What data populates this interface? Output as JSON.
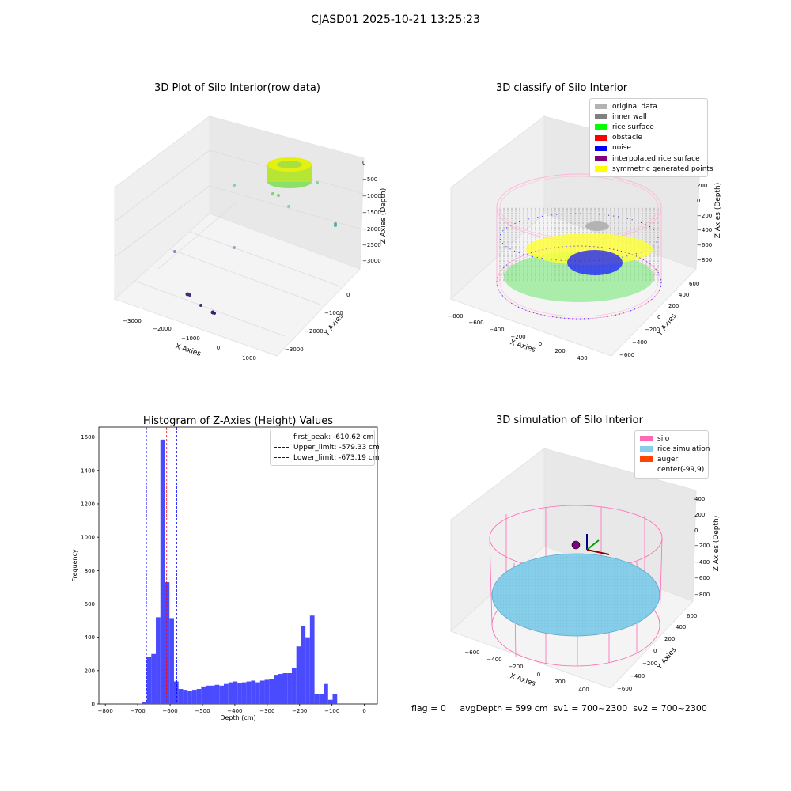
{
  "figure": {
    "suptitle": "CJASD01 2025-10-21 13:25:23",
    "footer": "flag = 0     avgDepth = 599 cm  sv1 = 700~2300  sv2 = 700~2300"
  },
  "colors": {
    "pink": "#ff69b4",
    "light_pink": "#ffb6d9",
    "gray": "#8c8c8c",
    "light_gray": "#b3b3b3",
    "green": "#00ff00",
    "blue": "#0000ff",
    "yellow": "#ffff00",
    "purple": "#800080",
    "red": "#ff0000",
    "sky": "#87ceeb",
    "orange": "#ff4500",
    "hist_bar": "#4a4aff",
    "pane_fill": "#f2f2f2",
    "grid": "#e0e0e0"
  },
  "panels": {
    "raw": {
      "title": "3D Plot of Silo Interior(row data)",
      "xlabel": "X Axies",
      "ylabel": "Y Axies",
      "zlabel": "Z Axies (Depth)",
      "xticks": [
        "−3000",
        "−2000",
        "−1000",
        "0",
        "1000"
      ],
      "yticks": [
        "−3000",
        "−2000",
        "−1000",
        "0"
      ],
      "zticks": [
        "0",
        "−500",
        "−1000",
        "−1500",
        "−2000",
        "−2500",
        "−3000"
      ]
    },
    "classify": {
      "title": "3D classify of Silo Interior",
      "xlabel": "X Axies",
      "ylabel": "Y Axies",
      "zlabel": "Z Axies (Depth)",
      "xticks": [
        "−800",
        "−600",
        "−400",
        "−200",
        "0",
        "200",
        "400"
      ],
      "yticks": [
        "−600",
        "−400",
        "−200",
        "0",
        "200",
        "400",
        "600"
      ],
      "zticks": [
        "200",
        "0",
        "−200",
        "−400",
        "−600",
        "−800"
      ],
      "legend": [
        {
          "label": "original data",
          "color": "#b3b3b3"
        },
        {
          "label": "inner wall",
          "color": "#808080"
        },
        {
          "label": "rice surface",
          "color": "#00ff00"
        },
        {
          "label": "obstacle",
          "color": "#ff0000"
        },
        {
          "label": "noise",
          "color": "#0000ff"
        },
        {
          "label": "interpolated rice surface",
          "color": "#800080"
        },
        {
          "label": "symmetric generated points",
          "color": "#ffff00"
        }
      ]
    },
    "simulation": {
      "title": "3D simulation of Silo Interior",
      "xlabel": "X Axies",
      "ylabel": "Y Axies",
      "zlabel": "Z Axies (Depth)",
      "xticks": [
        "−600",
        "−400",
        "−200",
        "0",
        "200",
        "400"
      ],
      "yticks": [
        "−600",
        "−400",
        "−200",
        "0",
        "200",
        "400",
        "600"
      ],
      "zticks": [
        "400",
        "200",
        "0",
        "−200",
        "−400",
        "−600",
        "−800"
      ],
      "legend": [
        {
          "label": "silo",
          "color": "#ff69b4"
        },
        {
          "label": "rice simulation",
          "color": "#87ceeb"
        },
        {
          "label": "auger",
          "color": "#ff4500"
        },
        {
          "label": "center(-99,9)",
          "color": ""
        }
      ]
    }
  },
  "chart_data": [
    {
      "type": "bar",
      "title": "Histogram of Z-Axies (Height) Values",
      "xlabel": "Depth (cm)",
      "ylabel": "Frequency",
      "xlim": [
        -820,
        40
      ],
      "ylim": [
        0,
        1660
      ],
      "xticks": [
        -800,
        -700,
        -600,
        -500,
        -400,
        -300,
        -200,
        -100,
        0
      ],
      "xtick_labels": [
        "−800",
        "−700",
        "−600",
        "−500",
        "−400",
        "−300",
        "−200",
        "−100",
        "0"
      ],
      "yticks": [
        0,
        200,
        400,
        600,
        800,
        1000,
        1200,
        1400,
        1600
      ],
      "ytick_labels": [
        "0",
        "200",
        "400",
        "600",
        "800",
        "1000",
        "1200",
        "1400",
        "1600"
      ],
      "bin_width": 14,
      "bin_edges_start": -700,
      "values": [
        2,
        10,
        280,
        300,
        520,
        1585,
        730,
        515,
        135,
        90,
        85,
        80,
        85,
        90,
        105,
        110,
        110,
        115,
        110,
        120,
        130,
        135,
        125,
        130,
        135,
        140,
        130,
        140,
        145,
        150,
        175,
        180,
        185,
        185,
        215,
        345,
        465,
        400,
        530,
        60,
        60,
        120,
        25,
        60
      ],
      "vlines": [
        {
          "x": -610.62,
          "label": "first_peak: -610.62 cm",
          "color": "#ff0000"
        },
        {
          "x": -579.33,
          "label": "Upper_limit: -579.33 cm",
          "color": "#0000ff"
        },
        {
          "x": -673.19,
          "label": "Lower_limit: -673.19 cm",
          "color": "#0000ff"
        }
      ],
      "legend_position": "top-right",
      "grid": false
    }
  ]
}
